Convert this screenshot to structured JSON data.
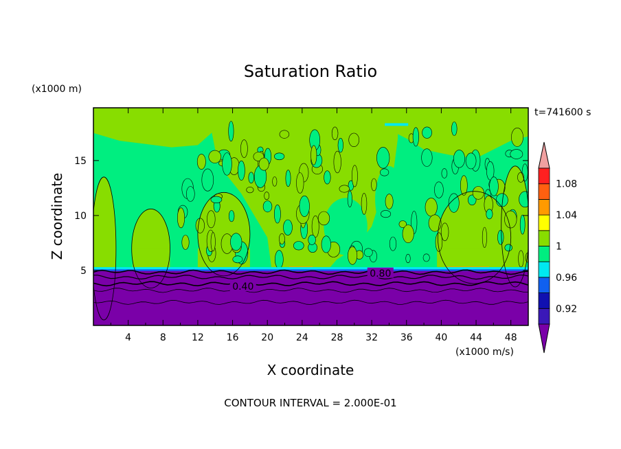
{
  "chart_data": {
    "type": "heatmap",
    "title": "Saturation Ratio",
    "xlabel": "X coordinate",
    "ylabel": "Z coordinate",
    "x_unit": "(x1000 m/s)",
    "y_unit": "(x1000 m)",
    "time_label": "t=741600 s",
    "footer": "CONTOUR INTERVAL = 2.000E-01",
    "xlim": [
      0,
      50
    ],
    "ylim": [
      0,
      19.8
    ],
    "x_ticks": [
      4,
      8,
      12,
      16,
      20,
      24,
      28,
      32,
      36,
      40,
      44,
      48
    ],
    "x_tick_labels": [
      "4",
      "8",
      "12",
      "16",
      "20",
      "24",
      "28",
      "32",
      "36",
      "40",
      "44",
      "48"
    ],
    "y_ticks": [
      5,
      10,
      15
    ],
    "y_tick_labels": [
      "5",
      "10",
      "15"
    ],
    "contour_labels": [
      {
        "text": "0.40",
        "x": 17.2,
        "z": 3.5
      },
      {
        "text": "0.80",
        "x": 33.0,
        "z": 4.7
      }
    ],
    "colorbar": {
      "levels": [
        0.92,
        0.94,
        0.96,
        0.98,
        1.0,
        1.02,
        1.04,
        1.06,
        1.08,
        1.1
      ],
      "labels": [
        "0.92",
        "0.96",
        "1",
        "1.04",
        "1.08"
      ],
      "label_values": [
        0.92,
        0.96,
        1.0,
        1.04,
        1.08
      ],
      "colors": [
        "#7a00a8",
        "#3a18b8",
        "#1010b0",
        "#1060f0",
        "#00e8f0",
        "#00ee80",
        "#88dd00",
        "#ffff00",
        "#ff9a00",
        "#ff6010",
        "#ff2020",
        "#f0a0a0"
      ]
    }
  }
}
